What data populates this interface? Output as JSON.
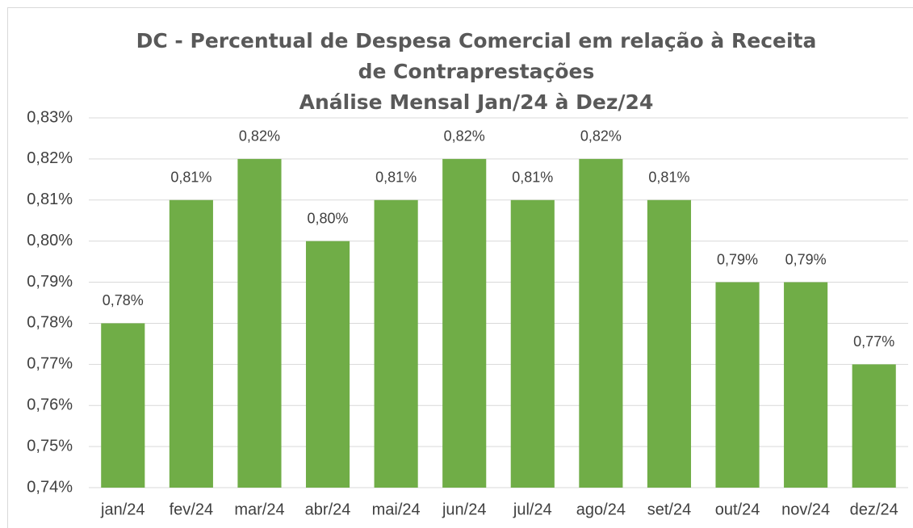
{
  "chart_data": {
    "type": "bar",
    "title": "DC - Percentual de Despesa Comercial em relação à Receita de Contraprestações",
    "subtitle": "Análise Mensal Jan/24 à Dez/24",
    "categories": [
      "jan/24",
      "fev/24",
      "mar/24",
      "abr/24",
      "mai/24",
      "jun/24",
      "jul/24",
      "ago/24",
      "set/24",
      "out/24",
      "nov/24",
      "dez/24"
    ],
    "values": [
      0.78,
      0.81,
      0.82,
      0.8,
      0.81,
      0.82,
      0.81,
      0.82,
      0.81,
      0.79,
      0.79,
      0.77
    ],
    "value_labels": [
      "0,78%",
      "0,81%",
      "0,82%",
      "0,80%",
      "0,81%",
      "0,82%",
      "0,81%",
      "0,82%",
      "0,81%",
      "0,79%",
      "0,79%",
      "0,77%"
    ],
    "color": "#70ad47",
    "ylim": [
      0.74,
      0.83
    ],
    "yticks": [
      {
        "value": 0.74,
        "label": "0,74%"
      },
      {
        "value": 0.75,
        "label": "0,75%"
      },
      {
        "value": 0.76,
        "label": "0,76%"
      },
      {
        "value": 0.77,
        "label": "0,77%"
      },
      {
        "value": 0.78,
        "label": "0,78%"
      },
      {
        "value": 0.79,
        "label": "0,79%"
      },
      {
        "value": 0.8,
        "label": "0,80%"
      },
      {
        "value": 0.81,
        "label": "0,81%"
      },
      {
        "value": 0.82,
        "label": "0,82%"
      },
      {
        "value": 0.83,
        "label": "0,83%"
      }
    ],
    "grid": true
  }
}
